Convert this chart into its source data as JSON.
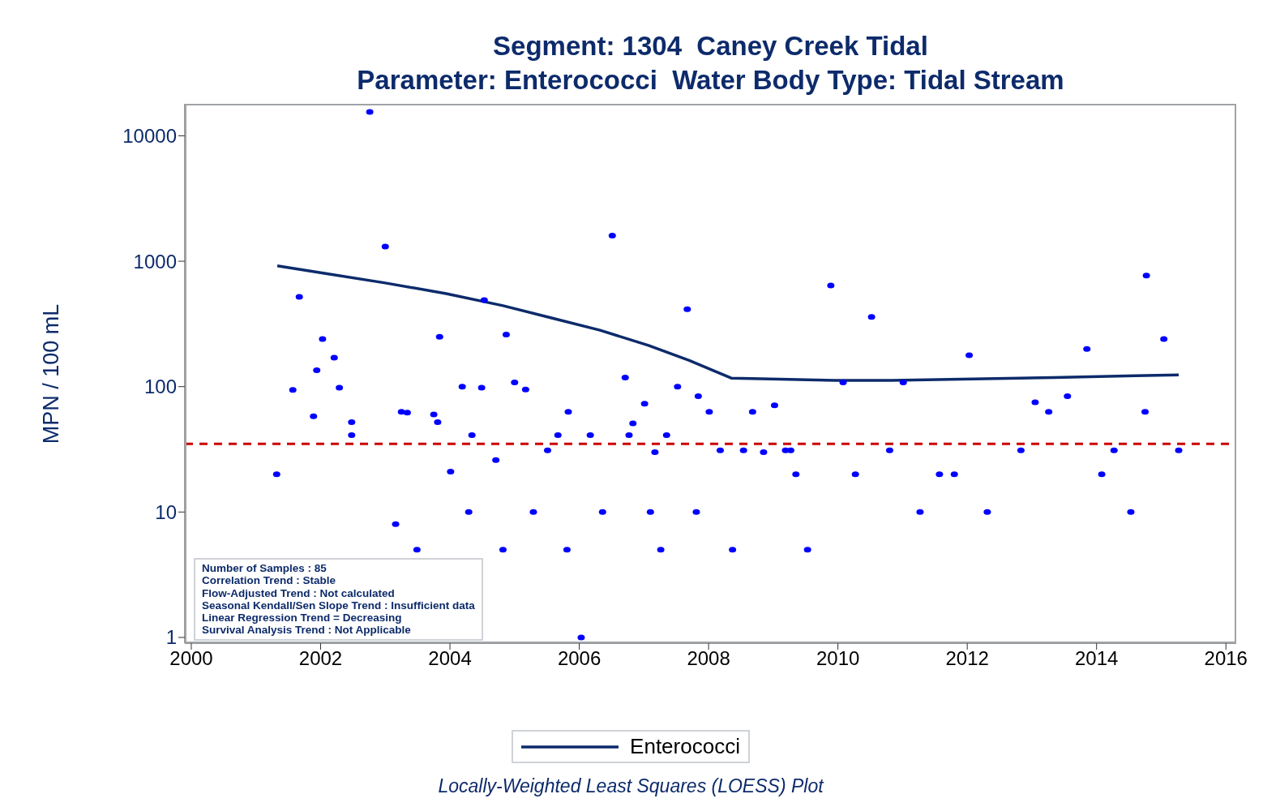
{
  "chart_data": {
    "type": "scatter",
    "title": "Segment: 1304  Caney Creek Tidal",
    "subtitle": "Parameter: Enterococci   Water Body Type: Tidal Stream",
    "ylabel": "MPN / 100 mL",
    "xlim": [
      1999.9,
      2016.16
    ],
    "xticks": [
      2000,
      2002,
      2004,
      2006,
      2008,
      2010,
      2012,
      2014,
      2016
    ],
    "ylim": [
      0.9,
      18000
    ],
    "yticks": [
      1,
      10,
      100,
      1000,
      10000
    ],
    "log": "y",
    "legend": "bottom",
    "series": [
      {
        "color": "#0000ff",
        "marker": "circle",
        "x": [
          2001.32,
          2001.57,
          2001.67,
          2001.89,
          2001.94,
          2002.03,
          2002.21,
          2002.29,
          2002.48,
          2002.48,
          2002.76,
          2003.0,
          2003.16,
          2003.25,
          2003.34,
          2003.49,
          2003.75,
          2003.81,
          2003.84,
          2004.01,
          2004.19,
          2004.29,
          2004.34,
          2004.49,
          2004.53,
          2004.71,
          2004.82,
          2004.87,
          2005.0,
          2005.17,
          2005.29,
          2005.51,
          2005.67,
          2005.81,
          2005.83,
          2006.03,
          2006.17,
          2006.36,
          2006.51,
          2006.71,
          2006.77,
          2006.83,
          2007.01,
          2007.1,
          2007.17,
          2007.26,
          2007.35,
          2007.52,
          2007.67,
          2007.81,
          2007.84,
          2008.01,
          2008.18,
          2008.37,
          2008.54,
          2008.68,
          2008.85,
          2009.02,
          2009.19,
          2009.27,
          2009.35,
          2009.53,
          2009.89,
          2010.08,
          2010.27,
          2010.52,
          2010.8,
          2011.01,
          2011.27,
          2011.57,
          2011.8,
          2012.03,
          2012.31,
          2012.83,
          2013.05,
          2013.26,
          2013.55,
          2013.85,
          2014.08,
          2014.27,
          2014.53,
          2014.75,
          2014.77,
          2015.04,
          2015.27
        ],
        "values": [
          20,
          94,
          520,
          58,
          135,
          240,
          170,
          98,
          52,
          41,
          15500,
          1310,
          8,
          63,
          62,
          5,
          60,
          52,
          250,
          21,
          100,
          10,
          41,
          98,
          490,
          26,
          5,
          260,
          108,
          95,
          10,
          31,
          41,
          5,
          63,
          1,
          41,
          10,
          1600,
          118,
          41,
          51,
          73,
          10,
          30,
          5,
          41,
          100,
          415,
          10,
          84,
          63,
          31,
          5,
          31,
          63,
          30,
          71,
          31,
          31,
          20,
          5,
          640,
          108,
          20,
          360,
          31,
          108,
          10,
          20,
          20,
          178,
          10,
          31,
          75,
          63,
          84,
          200,
          20,
          31,
          10,
          63,
          770,
          240,
          31
        ]
      },
      {
        "type": "line",
        "name": "Enterococci",
        "color": "#0d2b6b",
        "marker": "none",
        "line_style": "solid",
        "x": [
          2001.33,
          2002.06,
          2003.0,
          2003.94,
          2004.82,
          2005.57,
          2006.32,
          2007.07,
          2007.7,
          2008.08,
          2008.35,
          2008.95,
          2009.96,
          2010.83,
          2012.09,
          2013.34,
          2014.6,
          2015.27
        ],
        "values": [
          918,
          802,
          671,
          552,
          442,
          353,
          282,
          213,
          162,
          134,
          117,
          115,
          112,
          112,
          115,
          118,
          122,
          124
        ]
      }
    ],
    "ref_lines": [
      {
        "axis": "y",
        "value": 35,
        "color": "#cc0000",
        "line_style": "dashed"
      }
    ],
    "annotations": [
      "Number of Samples : 85",
      "Correlation Trend : Stable",
      "Flow-Adjusted Trend : Not calculated",
      "Seasonal Kendall/Sen Slope Trend : Insufficient data",
      "Linear Regression Trend = Decreasing",
      "Survival Analysis Trend : Not Applicable",
      "Locally-Weighted Least Squares (LOESS) Plot"
    ]
  }
}
